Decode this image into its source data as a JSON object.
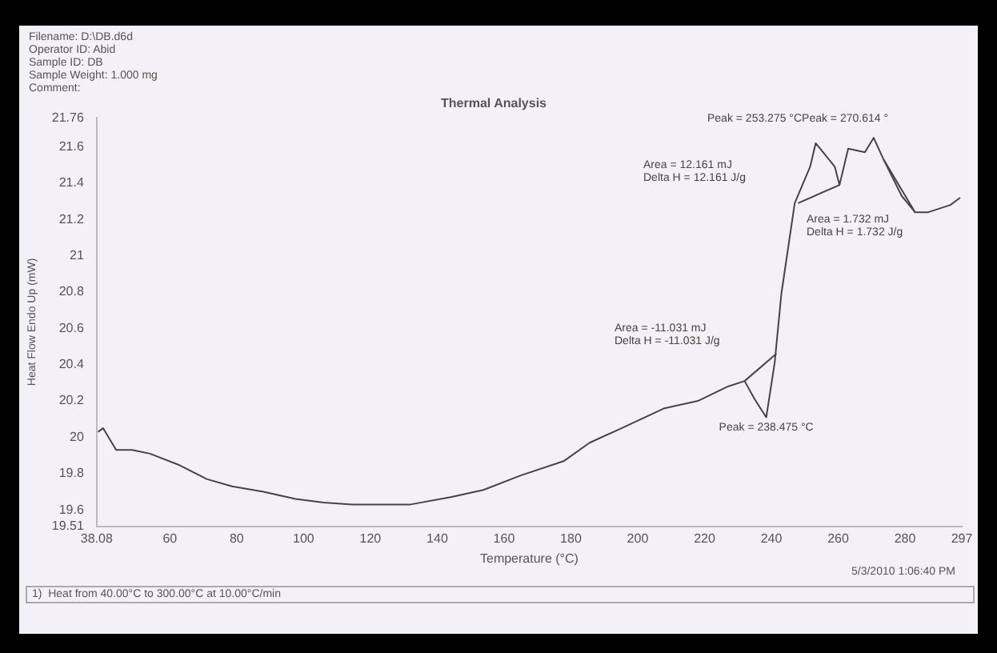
{
  "chart_data": {
    "type": "line",
    "title": "Thermal Analysis",
    "xlabel": "Temperature (°C)",
    "ylabel": "Heat Flow Endo Up (mW)",
    "xlim": [
      38.08,
      297
    ],
    "xticks": [
      38.08,
      60,
      80,
      100,
      120,
      140,
      160,
      180,
      200,
      220,
      240,
      260,
      280,
      297
    ],
    "ylim": [
      19.51,
      21.76
    ],
    "yticks": [
      19.51,
      19.6,
      19.8,
      20.0,
      20.2,
      20.4,
      20.6,
      20.8,
      21.0,
      21.2,
      21.4,
      21.6,
      21.76
    ],
    "grid": false,
    "legend": false,
    "marker": "none",
    "line_style": "solid",
    "series": [
      {
        "color": "#444444",
        "x": [
          38.5,
          40,
          43.9,
          48.7,
          54,
          62.4,
          71,
          78.6,
          88,
          97.6,
          106,
          114.7,
          122.6,
          132,
          144,
          153.8,
          165,
          178,
          185.6,
          194,
          208,
          218,
          227,
          232,
          235,
          238.475,
          241,
          243,
          247,
          251.6,
          253.275,
          259,
          260.4,
          263,
          268,
          270.614,
          273.6,
          279,
          283,
          287,
          293.6,
          296.5
        ],
        "values": [
          20.03,
          20.05,
          19.93,
          19.93,
          19.91,
          19.85,
          19.77,
          19.73,
          19.7,
          19.66,
          19.64,
          19.63,
          19.63,
          19.63,
          19.67,
          19.71,
          19.79,
          19.87,
          19.97,
          20.04,
          20.16,
          20.2,
          20.28,
          20.31,
          20.21,
          20.11,
          20.41,
          20.79,
          21.29,
          21.49,
          21.62,
          21.49,
          21.39,
          21.59,
          21.57,
          21.65,
          21.53,
          21.33,
          21.24,
          21.24,
          21.28,
          21.32
        ]
      },
      {
        "color": "#444444",
        "x": [
          232,
          241.5
        ],
        "values": [
          20.31,
          20.46
        ]
      },
      {
        "color": "#444444",
        "x": [
          248,
          260.4
        ],
        "values": [
          21.29,
          21.39
        ]
      },
      {
        "color": "#444444",
        "x": [
          273.6,
          283
        ],
        "values": [
          21.53,
          21.24
        ]
      }
    ],
    "annotations": [
      "Filename: D:\\DB.d6d",
      "Operator ID: Abid",
      "Sample ID: DB",
      "Sample Weight: 1.000 mg",
      "Comment:",
      "Peak = 253.275 °CPeak = 270.614 °",
      "Area = 12.161 mJ\nDelta H = 12.161 J/g",
      "Area = 1.732 mJ\nDelta H = 1.732 J/g",
      "Area = -11.031 mJ\nDelta H = -11.031 J/g",
      {
        "text": "Peak = 238.475 °C",
        "x": 238.475,
        "y": 20.11
      },
      "5/3/2010 1:06:40 PM",
      "1)  Heat from 40.00°C to 300.00°C at 10.00°C/min"
    ]
  }
}
